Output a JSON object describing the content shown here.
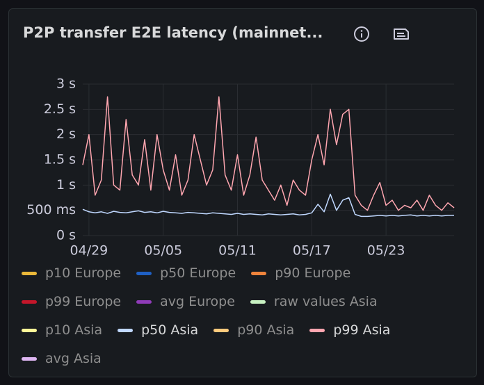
{
  "chart_data": {
    "type": "line",
    "title": "P2P transfer E2E latency (mainnet...",
    "categories": [
      null,
      "04/29",
      null,
      null,
      null,
      null,
      null,
      null,
      null,
      null,
      null,
      null,
      null,
      "05/05",
      null,
      null,
      null,
      null,
      null,
      null,
      null,
      null,
      null,
      null,
      null,
      "05/11",
      null,
      null,
      null,
      null,
      null,
      null,
      null,
      null,
      null,
      null,
      null,
      "05/17",
      null,
      null,
      null,
      null,
      null,
      null,
      null,
      null,
      null,
      null,
      null,
      "05/23",
      null,
      null,
      null,
      null,
      null,
      null,
      null,
      null,
      null,
      null,
      null
    ],
    "ylim": [
      0,
      3
    ],
    "yticks": [
      {
        "value": 0,
        "label": "0 s"
      },
      {
        "value": 0.5,
        "label": "500 ms"
      },
      {
        "value": 1,
        "label": "1 s"
      },
      {
        "value": 1.5,
        "label": "1.5 s"
      },
      {
        "value": 2,
        "label": "2 s"
      },
      {
        "value": 2.5,
        "label": "2.5 s"
      },
      {
        "value": 3,
        "label": "3 s"
      }
    ],
    "grid": true,
    "legend": "bottom",
    "series": [
      {
        "name": "p10 Europe",
        "color": "#eab839",
        "hidden": true
      },
      {
        "name": "p50 Europe",
        "color": "#1f60c4",
        "hidden": true
      },
      {
        "name": "p90 Europe",
        "color": "#ef843c",
        "hidden": true
      },
      {
        "name": "p99 Europe",
        "color": "#c4162a",
        "hidden": true
      },
      {
        "name": "avg Europe",
        "color": "#8f3bb8",
        "hidden": true
      },
      {
        "name": "raw values Asia",
        "color": "#c8f2c2",
        "hidden": true
      },
      {
        "name": "p10 Asia",
        "color": "#fff899",
        "hidden": true
      },
      {
        "name": "p50 Asia",
        "color": "#c0d8ff",
        "values": [
          0.52,
          0.47,
          0.45,
          0.47,
          0.44,
          0.48,
          0.46,
          0.45,
          0.47,
          0.49,
          0.46,
          0.47,
          0.45,
          0.48,
          0.46,
          0.45,
          0.44,
          0.46,
          0.45,
          0.44,
          0.43,
          0.45,
          0.44,
          0.43,
          0.42,
          0.44,
          0.42,
          0.43,
          0.42,
          0.41,
          0.43,
          0.42,
          0.41,
          0.42,
          0.43,
          0.41,
          0.42,
          0.45,
          0.62,
          0.47,
          0.82,
          0.5,
          0.7,
          0.75,
          0.42,
          0.38,
          0.38,
          0.39,
          0.4,
          0.39,
          0.4,
          0.39,
          0.4,
          0.41,
          0.39,
          0.4,
          0.39,
          0.4,
          0.39,
          0.4,
          0.4
        ]
      },
      {
        "name": "p90 Asia",
        "color": "#ffcb7d",
        "hidden": true
      },
      {
        "name": "p99 Asia",
        "color": "#ffa6b0",
        "values": [
          1.4,
          2.0,
          0.8,
          1.1,
          2.75,
          1.0,
          0.9,
          2.3,
          1.2,
          1.0,
          1.9,
          0.9,
          2.0,
          1.3,
          0.9,
          1.6,
          0.8,
          1.1,
          2.0,
          1.5,
          1.0,
          1.3,
          2.75,
          1.2,
          0.9,
          1.6,
          0.8,
          1.2,
          1.95,
          1.1,
          0.9,
          0.7,
          1.0,
          0.6,
          1.1,
          0.9,
          0.8,
          1.5,
          2.0,
          1.4,
          2.5,
          1.8,
          2.4,
          2.5,
          0.8,
          0.6,
          0.5,
          0.8,
          1.05,
          0.6,
          0.7,
          0.5,
          0.6,
          0.55,
          0.7,
          0.5,
          0.8,
          0.6,
          0.5,
          0.65,
          0.55
        ]
      },
      {
        "name": "avg Asia",
        "color": "#deb6f2",
        "hidden": true
      }
    ]
  }
}
